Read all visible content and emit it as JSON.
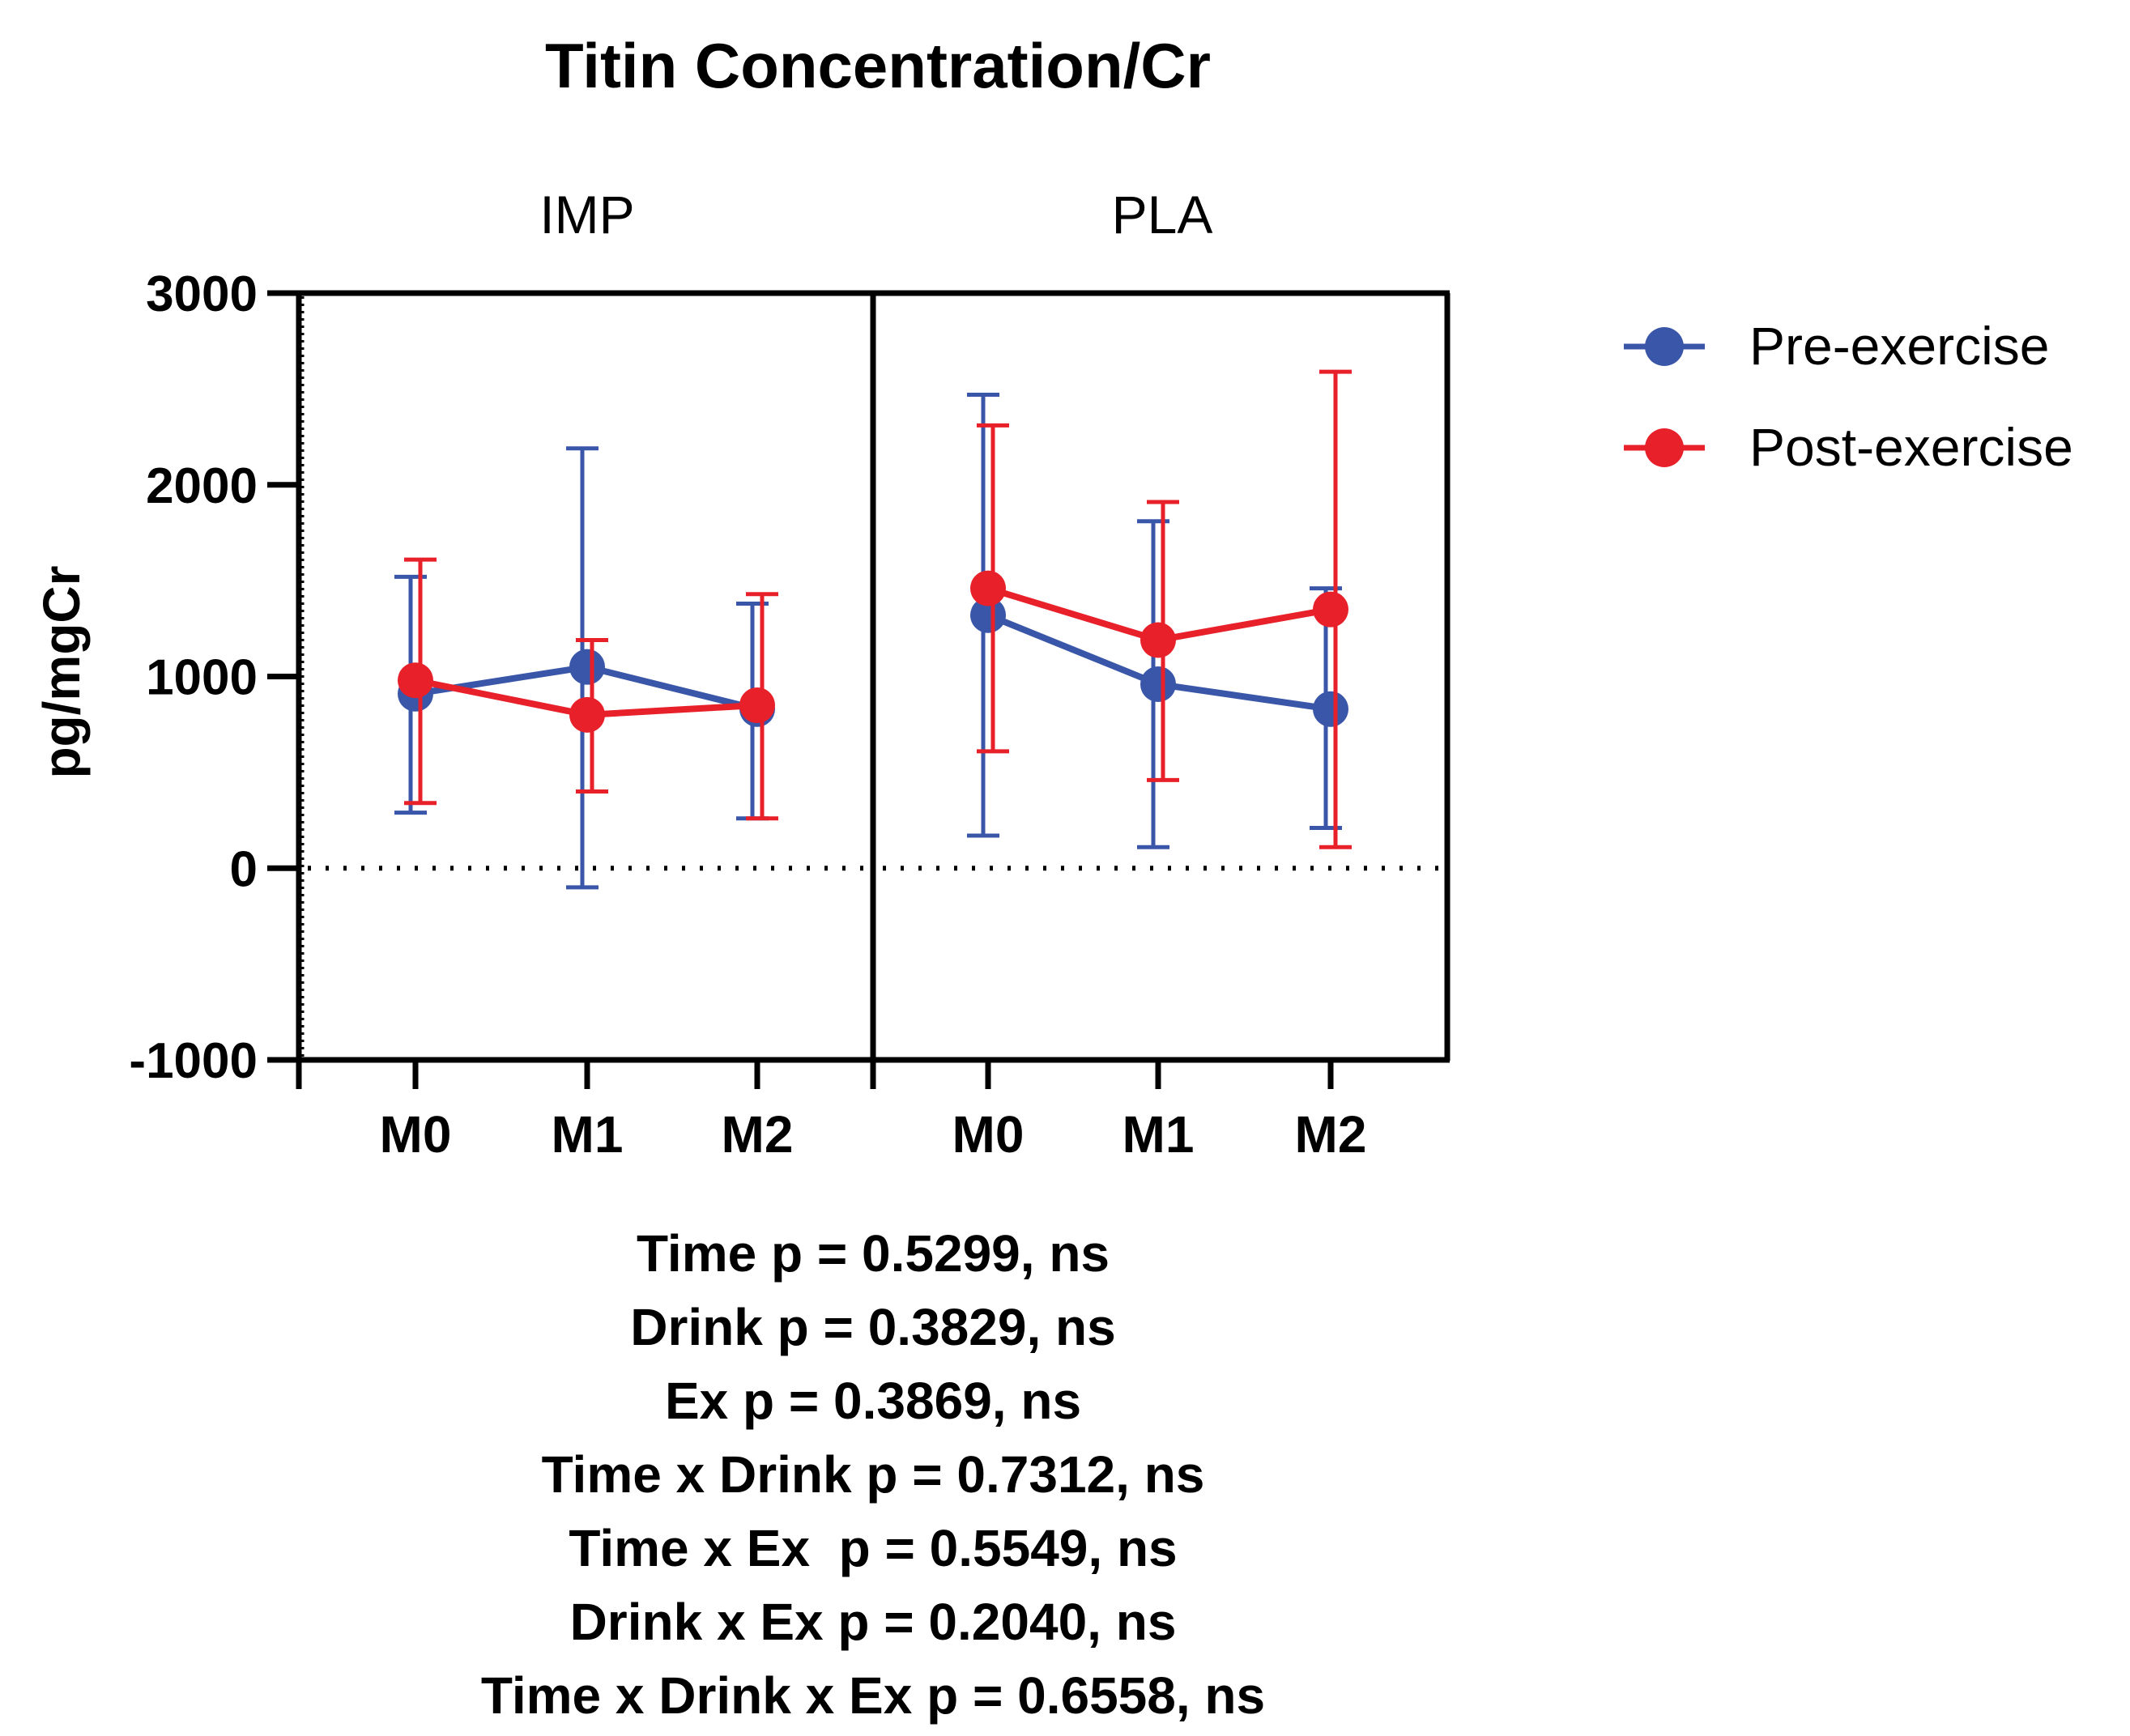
{
  "chart_data": {
    "type": "line",
    "title": "Titin Concentration/Cr",
    "ylabel": "pg/mgCr",
    "xlabel": "",
    "ylim": [
      -1000,
      3000
    ],
    "yticks": [
      -1000,
      0,
      1000,
      2000,
      3000
    ],
    "reference_line": 0,
    "panels": [
      "IMP",
      "PLA"
    ],
    "categories": [
      "M0",
      "M1",
      "M2"
    ],
    "legend_position": "top-right",
    "series": [
      {
        "name": "Pre-exercise",
        "color": "#3a56a8",
        "panels": {
          "IMP": {
            "values": [
              910,
              1050,
              830
            ],
            "lower": [
              290,
              -100,
              260
            ],
            "upper": [
              1520,
              2190,
              1380
            ]
          },
          "PLA": {
            "values": [
              1320,
              960,
              830
            ],
            "lower": [
              170,
              110,
              210
            ],
            "upper": [
              2470,
              1810,
              1460
            ]
          }
        }
      },
      {
        "name": "Post-exercise",
        "color": "#e8202a",
        "panels": {
          "IMP": {
            "values": [
              980,
              800,
              850
            ],
            "lower": [
              340,
              400,
              260
            ],
            "upper": [
              1610,
              1190,
              1430
            ]
          },
          "PLA": {
            "values": [
              1460,
              1190,
              1350
            ],
            "lower": [
              610,
              460,
              110
            ],
            "upper": [
              2310,
              1910,
              2590
            ]
          }
        }
      }
    ],
    "annotations": [
      "Time p = 0.5299, ns",
      "Drink p = 0.3829, ns",
      "Ex p = 0.3869, ns",
      "Time x Drink p = 0.7312, ns",
      "Time x Ex  p = 0.5549, ns",
      "Drink x Ex p = 0.2040, ns",
      "Time x Drink x Ex p = 0.6558, ns"
    ]
  }
}
